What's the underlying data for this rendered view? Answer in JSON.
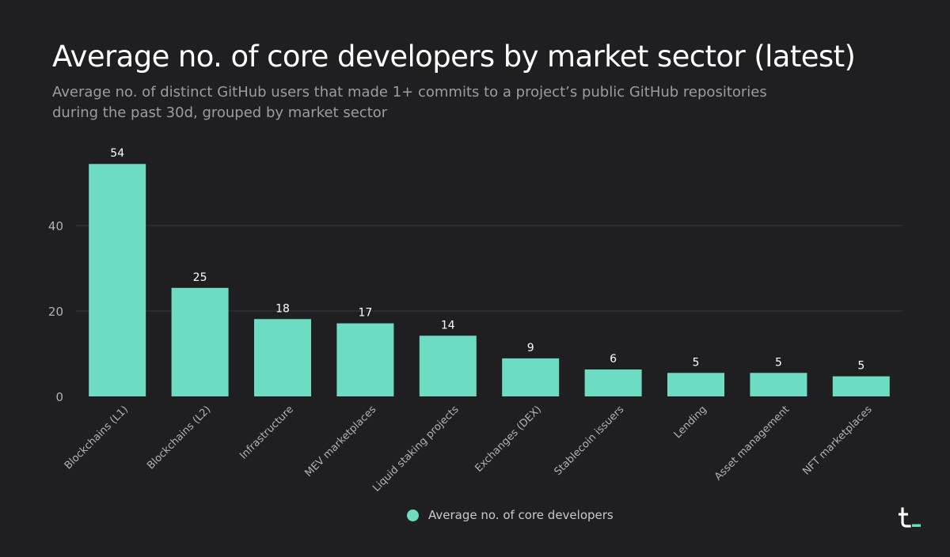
{
  "header": {
    "title": "Average no. of core developers by market sector (latest)",
    "subtitle": "Average no. of distinct GitHub users that made 1+ commits to a project’s public GitHub repositories during the past 30d, grouped by market sector"
  },
  "colors": {
    "bar": "#6ddcc2",
    "background": "#1f1e20",
    "grid": "#3a3a3d",
    "axis_text": "#b3b3b6",
    "logo_accent": "#6ddcc2"
  },
  "legend": {
    "label": "Average no. of core developers"
  },
  "logo": {
    "icon": "token-terminal-logo-icon"
  },
  "chart_data": {
    "type": "bar",
    "title": "Average no. of core developers by market sector (latest)",
    "categories": [
      "Blockchains (L1)",
      "Blockchains (L2)",
      "Infrastructure",
      "MEV marketplaces",
      "Liquid staking projects",
      "Exchanges (DEX)",
      "Stablecoin issuers",
      "Lending",
      "Asset management",
      "NFT marketplaces"
    ],
    "series": [
      {
        "name": "Average no. of core developers",
        "values": [
          54.4,
          25.4,
          18.1,
          17.1,
          14.2,
          8.9,
          6.3,
          5.5,
          5.5,
          4.7
        ],
        "labels": [
          "54",
          "25",
          "18",
          "17",
          "14",
          "9",
          "6",
          "5",
          "5",
          "5"
        ]
      }
    ],
    "yticks": [
      0,
      20,
      40
    ],
    "ylim": [
      0,
      60
    ],
    "xlabel": "",
    "ylabel": "",
    "grid": true,
    "legend_position": "bottom-center"
  }
}
